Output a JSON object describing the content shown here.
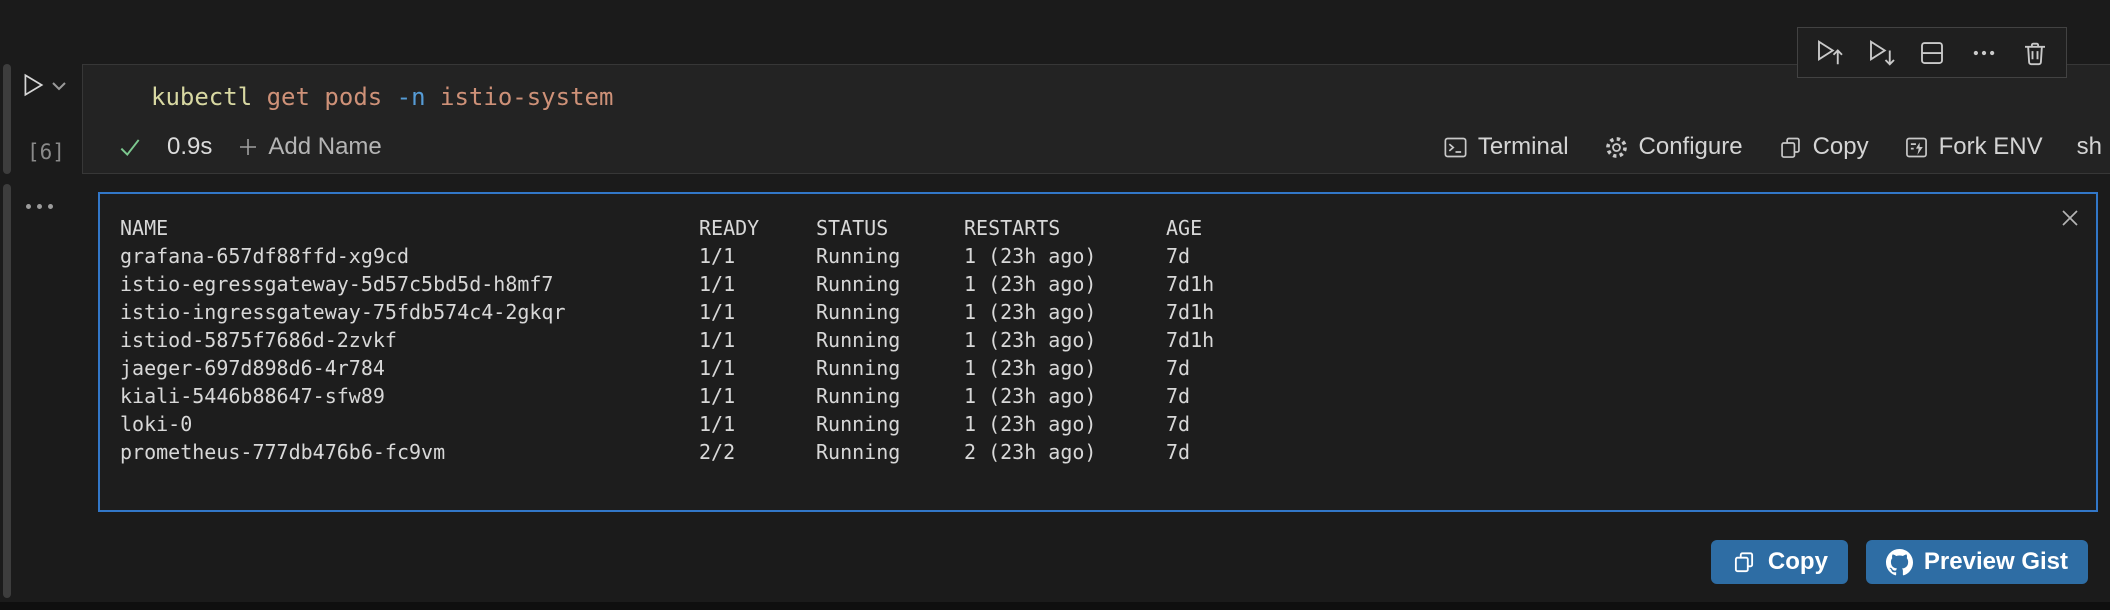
{
  "cell": {
    "execution_count": "[6]",
    "command": {
      "tokens": [
        {
          "text": "kubectl",
          "color": "#d8d8a2"
        },
        {
          "text": " ",
          "color": ""
        },
        {
          "text": "get",
          "color": "#ce9178"
        },
        {
          "text": " ",
          "color": ""
        },
        {
          "text": "pods",
          "color": "#ce9178"
        },
        {
          "text": " ",
          "color": ""
        },
        {
          "text": "-n",
          "color": "#569cd6"
        },
        {
          "text": " ",
          "color": ""
        },
        {
          "text": "istio-system",
          "color": "#ce9178"
        }
      ]
    },
    "status": {
      "duration": "0.9s",
      "add_name_label": "Add Name"
    },
    "statusbar_right": {
      "terminal_label": "Terminal",
      "configure_label": "Configure",
      "copy_label": "Copy",
      "fork_env_label": "Fork ENV"
    },
    "language": "sh",
    "toolbar_icons": [
      "execute-above",
      "execute-below",
      "split-cell",
      "more-actions",
      "delete-cell"
    ]
  },
  "output": {
    "columns": [
      "NAME",
      "READY",
      "STATUS",
      "RESTARTS",
      "AGE"
    ],
    "rows": [
      [
        "grafana-657df88ffd-xg9cd",
        "1/1",
        "Running",
        "1 (23h ago)",
        "7d"
      ],
      [
        "istio-egressgateway-5d57c5bd5d-h8mf7",
        "1/1",
        "Running",
        "1 (23h ago)",
        "7d1h"
      ],
      [
        "istio-ingressgateway-75fdb574c4-2gkqr",
        "1/1",
        "Running",
        "1 (23h ago)",
        "7d1h"
      ],
      [
        "istiod-5875f7686d-2zvkf",
        "1/1",
        "Running",
        "1 (23h ago)",
        "7d1h"
      ],
      [
        "jaeger-697d898d6-4r784",
        "1/1",
        "Running",
        "1 (23h ago)",
        "7d"
      ],
      [
        "kiali-5446b88647-sfw89",
        "1/1",
        "Running",
        "1 (23h ago)",
        "7d"
      ],
      [
        "loki-0",
        "1/1",
        "Running",
        "1 (23h ago)",
        "7d"
      ],
      [
        "prometheus-777db476b6-fc9vm",
        "2/2",
        "Running",
        "2 (23h ago)",
        "7d"
      ]
    ]
  },
  "footer": {
    "copy_label": "Copy",
    "preview_gist_label": "Preview Gist"
  },
  "colors": {
    "accent_blue": "#3277c8",
    "button_blue": "#2e6da4",
    "success_green": "#7cc88f",
    "cell_background": "#232323",
    "page_background": "#1b1b1b"
  }
}
